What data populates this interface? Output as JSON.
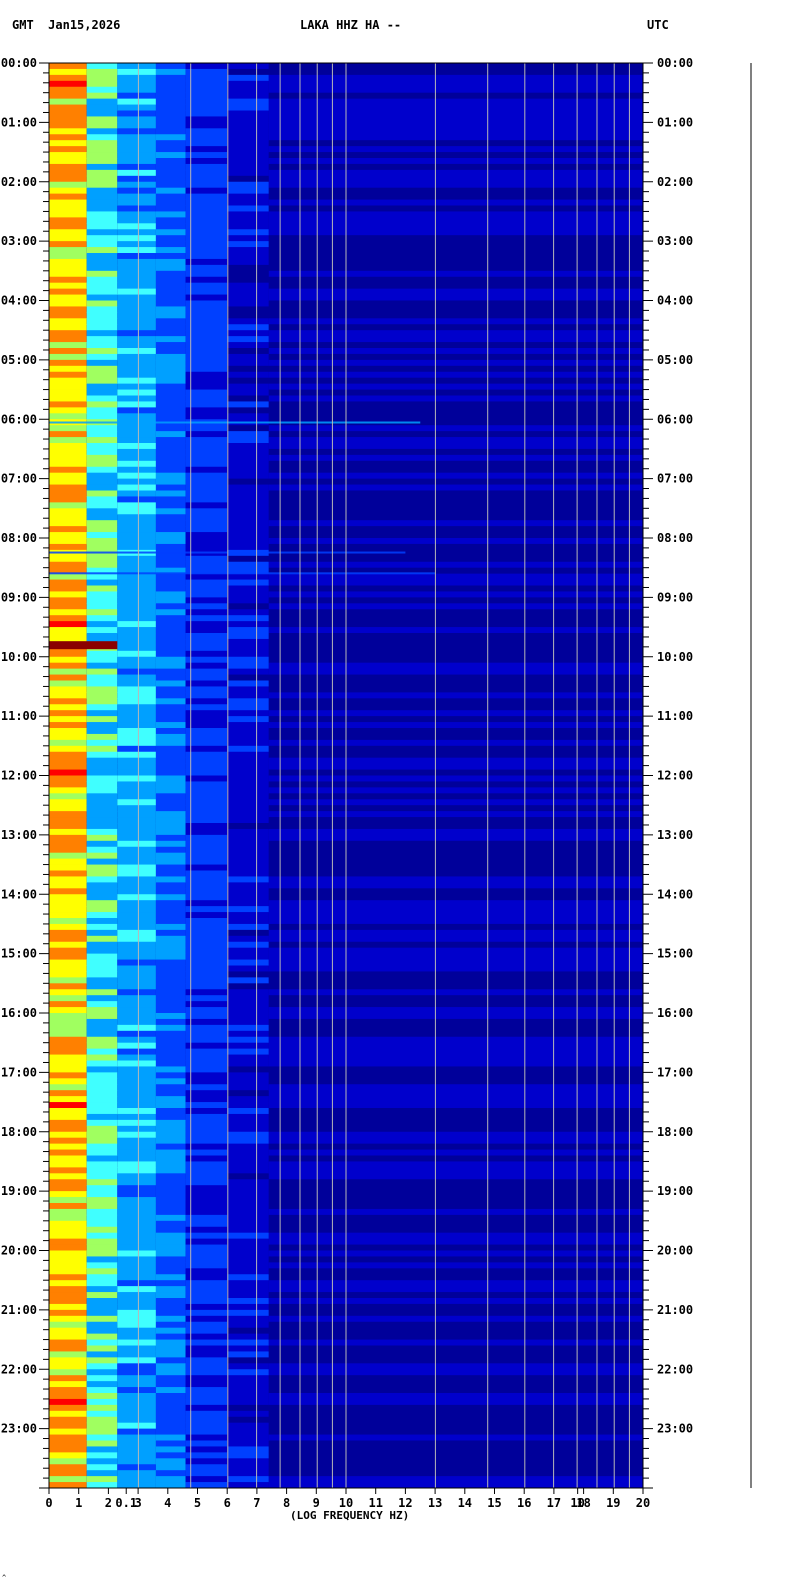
{
  "header": {
    "timezone_left": "GMT",
    "date": "Jan15,2026",
    "title": "LAKA HHZ HA --",
    "timezone_right": "UTC"
  },
  "chart_data": {
    "type": "heatmap",
    "title": "LAKA HHZ HA --",
    "date": "Jan15,2026",
    "xlabel": "(LOG FREQUENCY HZ)",
    "x_axis": {
      "scale": "log",
      "ticks": [
        "0",
        "1",
        "2",
        "0.1",
        "3",
        "4",
        "5",
        "6",
        "7",
        "8",
        "9",
        "10",
        "11",
        "12",
        "13",
        "14",
        "15",
        "16",
        "17",
        "10",
        "18",
        "19",
        "20"
      ],
      "xlim": [
        0,
        20
      ]
    },
    "y_axis": {
      "ticks": [
        "00:00",
        "01:00",
        "02:00",
        "03:00",
        "04:00",
        "05:00",
        "06:00",
        "07:00",
        "08:00",
        "09:00",
        "10:00",
        "11:00",
        "12:00",
        "13:00",
        "14:00",
        "15:00",
        "16:00",
        "17:00",
        "18:00",
        "19:00",
        "20:00",
        "21:00",
        "22:00",
        "23:00"
      ],
      "ylim": [
        "00:00",
        "24:00"
      ],
      "direction": "down"
    },
    "colormap": [
      "#00009a",
      "#0000cc",
      "#0040ff",
      "#00a0ff",
      "#40ffff",
      "#a0ff60",
      "#ffff00",
      "#ff8000",
      "#ff0000",
      "#8b0000"
    ],
    "band_levels": [
      {
        "f_from": 0,
        "f_to": 1.27,
        "level": 0.7
      },
      {
        "f_from": 1.27,
        "f_to": 2.3,
        "level": 0.45
      },
      {
        "f_from": 2.3,
        "f_to": 3.6,
        "level": 0.34
      },
      {
        "f_from": 3.6,
        "f_to": 4.6,
        "level": 0.26
      },
      {
        "f_from": 4.6,
        "f_to": 6.0,
        "level": 0.2
      },
      {
        "f_from": 6.0,
        "f_to": 7.4,
        "level": 0.12
      },
      {
        "f_from": 7.4,
        "f_to": 20,
        "level": 0.05
      }
    ],
    "events": [
      {
        "time_h": 9.78,
        "f_max": 2.3,
        "level": 1.0
      },
      {
        "time_h": 6.08,
        "f_max": 12.5,
        "level": 0.3
      },
      {
        "time_h": 8.27,
        "f_max": 12.0,
        "level": 0.22
      },
      {
        "time_h": 8.62,
        "f_max": 13.0,
        "level": 0.25
      }
    ]
  },
  "footer": {
    "corner_mark": "^"
  }
}
